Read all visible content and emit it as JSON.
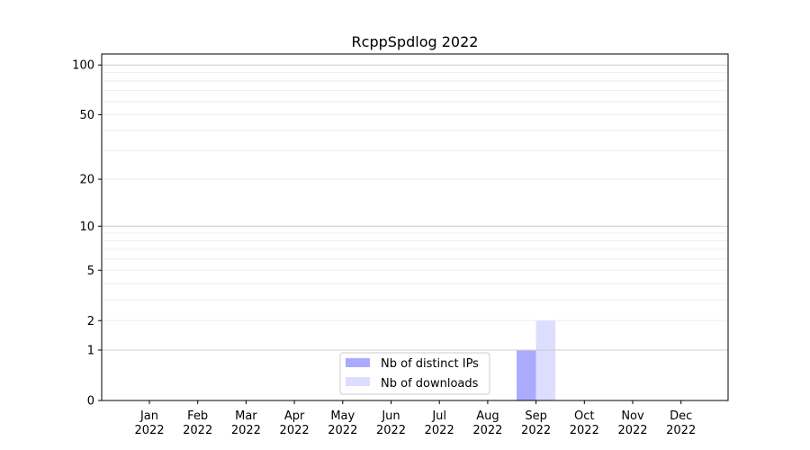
{
  "chart_data": {
    "type": "bar",
    "title": "RcppSpdlog 2022",
    "xlabel": "",
    "ylabel": "",
    "yscale": "log(1+y)",
    "ylim": [
      0,
      116
    ],
    "yticks": [
      0,
      1,
      2,
      5,
      10,
      20,
      50,
      100
    ],
    "grid": true,
    "legend_position": "bottom-center",
    "categories": [
      "Jan\n2022",
      "Feb\n2022",
      "Mar\n2022",
      "Apr\n2022",
      "May\n2022",
      "Jun\n2022",
      "Jul\n2022",
      "Aug\n2022",
      "Sep\n2022",
      "Oct\n2022",
      "Nov\n2022",
      "Dec\n2022"
    ],
    "series": [
      {
        "name": "Nb of distinct IPs",
        "color": "#aaaaff",
        "values": [
          0,
          0,
          0,
          0,
          0,
          0,
          0,
          0,
          1,
          0,
          0,
          0
        ]
      },
      {
        "name": "Nb of downloads",
        "color": "#ddddff",
        "values": [
          0,
          0,
          0,
          0,
          0,
          0,
          0,
          0,
          2,
          0,
          0,
          0
        ]
      }
    ]
  }
}
